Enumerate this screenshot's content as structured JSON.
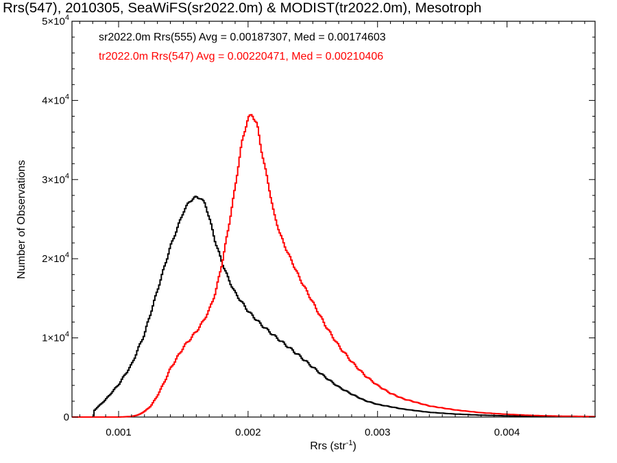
{
  "chart_data": {
    "type": "line",
    "title": "Rrs(547), 2010305, SeaWiFS(sr2022.0m) & MODIST(tr2022.0m), Mesotroph",
    "xlabel": "Rrs (str",
    "xlabel_sup": "-1",
    "xlabel_suffix": ")",
    "ylabel": "Number of Observations",
    "xlim": [
      0.00064,
      0.00468
    ],
    "ylim": [
      0,
      50000
    ],
    "x_ticks": [
      {
        "value": 0.001,
        "label": "0.001"
      },
      {
        "value": 0.002,
        "label": "0.002"
      },
      {
        "value": 0.003,
        "label": "0.003"
      },
      {
        "value": 0.004,
        "label": "0.004"
      }
    ],
    "y_ticks": [
      {
        "value": 0,
        "base": "0",
        "exp": ""
      },
      {
        "value": 10000,
        "base": "1×10",
        "exp": "4"
      },
      {
        "value": 20000,
        "base": "2×10",
        "exp": "4"
      },
      {
        "value": 30000,
        "base": "3×10",
        "exp": "4"
      },
      {
        "value": 40000,
        "base": "4×10",
        "exp": "4"
      },
      {
        "value": 50000,
        "base": "5×10",
        "exp": "4"
      }
    ],
    "grid": false,
    "legend_position": "top-left",
    "legend": [
      {
        "text": "sr2022.0m Rrs(555) Avg = 0.00187307, Med = 0.00174603",
        "color": "#000000"
      },
      {
        "text": "tr2022.0m Rrs(547) Avg = 0.00220471, Med = 0.00210406",
        "color": "#ff0000"
      }
    ],
    "series": [
      {
        "color": "#000000",
        "x": [
          0.00081,
          0.0009,
          0.001,
          0.0011,
          0.0012,
          0.0013,
          0.0014,
          0.0015,
          0.00155,
          0.0016,
          0.00163,
          0.00167,
          0.0017,
          0.00175,
          0.0018,
          0.00185,
          0.0019,
          0.002,
          0.0021,
          0.0022,
          0.0023,
          0.0024,
          0.0025,
          0.0026,
          0.0027,
          0.0028,
          0.0029,
          0.003,
          0.0032,
          0.0034,
          0.0036,
          0.0038,
          0.004,
          0.0042,
          0.0044,
          0.00468
        ],
        "y": [
          800,
          2200,
          4100,
          6600,
          10500,
          16000,
          21500,
          25900,
          27300,
          27800,
          27700,
          26900,
          25200,
          22000,
          19500,
          17400,
          15700,
          13400,
          11700,
          10300,
          9000,
          7700,
          6300,
          5000,
          3800,
          2900,
          2100,
          1600,
          1000,
          600,
          380,
          240,
          150,
          90,
          60,
          30
        ]
      },
      {
        "color": "#ff0000",
        "x": [
          0.001,
          0.0011,
          0.00115,
          0.0012,
          0.00125,
          0.0013,
          0.00135,
          0.0014,
          0.0015,
          0.0016,
          0.00165,
          0.0017,
          0.00175,
          0.0018,
          0.00185,
          0.0019,
          0.00195,
          0.002,
          0.00203,
          0.00207,
          0.0021,
          0.00215,
          0.0022,
          0.00225,
          0.0023,
          0.0024,
          0.0025,
          0.0026,
          0.0027,
          0.0028,
          0.0029,
          0.003,
          0.0031,
          0.0032,
          0.0034,
          0.0036,
          0.0038,
          0.004,
          0.0042,
          0.0044,
          0.00468
        ],
        "y": [
          0,
          80,
          250,
          700,
          1400,
          2700,
          4300,
          6100,
          8800,
          10800,
          12000,
          13500,
          15800,
          19500,
          24000,
          29000,
          34500,
          37800,
          38200,
          37000,
          34000,
          30000,
          25700,
          23000,
          21000,
          17500,
          14500,
          11500,
          9000,
          7000,
          5300,
          4000,
          3000,
          2300,
          1400,
          900,
          550,
          350,
          200,
          120,
          60
        ]
      }
    ]
  }
}
